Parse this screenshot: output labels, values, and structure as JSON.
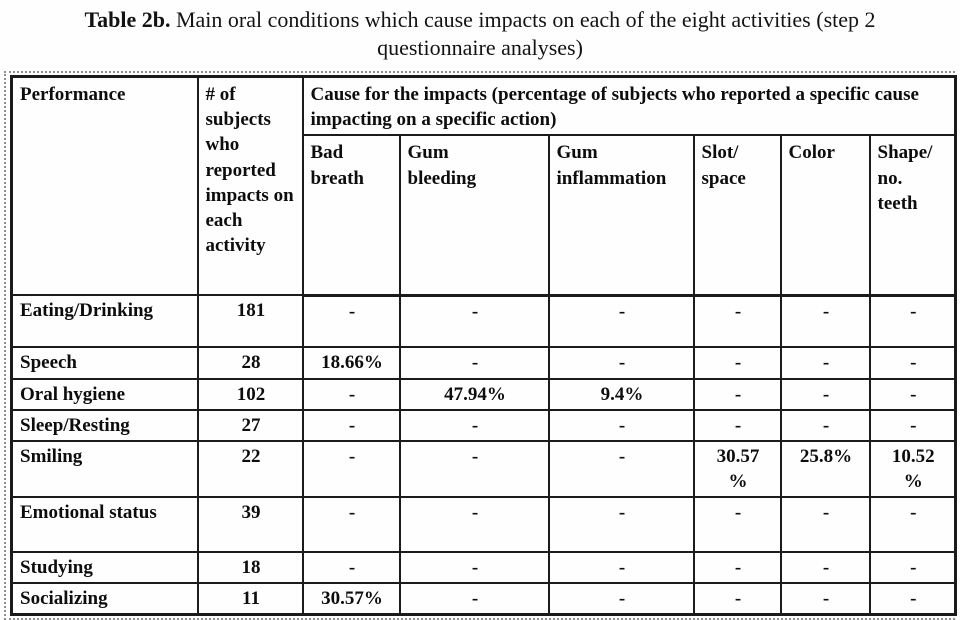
{
  "caption": {
    "label": "Table 2b.",
    "text": " Main oral conditions which cause impacts on each of the eight activities (step 2 questionnaire analyses)"
  },
  "table": {
    "headers": {
      "performance": "Performance",
      "subjects": "# of subjects who reported impacts on each activity",
      "cause_group": "Cause for the impacts (percentage of subjects who reported a specific cause impacting on a specific action)",
      "causes": [
        "Bad\nbreath",
        "Gum\nbleeding",
        "Gum\ninflammation",
        "Slot/\nspace",
        "Color",
        "Shape/\nno.\nteeth"
      ]
    },
    "rows": [
      {
        "activity": "Eating/Drinking",
        "subjects": "181",
        "causes": [
          "-",
          "-",
          "-",
          "-",
          "-",
          "-"
        ]
      },
      {
        "activity": "Speech",
        "subjects": "28",
        "causes": [
          "18.66%",
          "-",
          "-",
          "-",
          "-",
          "-"
        ]
      },
      {
        "activity": "Oral hygiene",
        "subjects": "102",
        "causes": [
          "-",
          "47.94%",
          "9.4%",
          "-",
          "-",
          "-"
        ]
      },
      {
        "activity": "Sleep/Resting",
        "subjects": "27",
        "causes": [
          "-",
          "-",
          "-",
          "-",
          "-",
          "-"
        ]
      },
      {
        "activity": "Smiling",
        "subjects": "22",
        "causes": [
          "-",
          "-",
          "-",
          "30.57\n%",
          "25.8%",
          "10.52\n%"
        ]
      },
      {
        "activity": "Emotional status",
        "subjects": "39",
        "causes": [
          "-",
          "-",
          "-",
          "-",
          "-",
          "-"
        ]
      },
      {
        "activity": "Studying",
        "subjects": "18",
        "causes": [
          "-",
          "-",
          "-",
          "-",
          "-",
          "-"
        ]
      },
      {
        "activity": "Socializing",
        "subjects": "11",
        "causes": [
          "30.57%",
          "-",
          "-",
          "-",
          "-",
          "-"
        ]
      }
    ]
  }
}
